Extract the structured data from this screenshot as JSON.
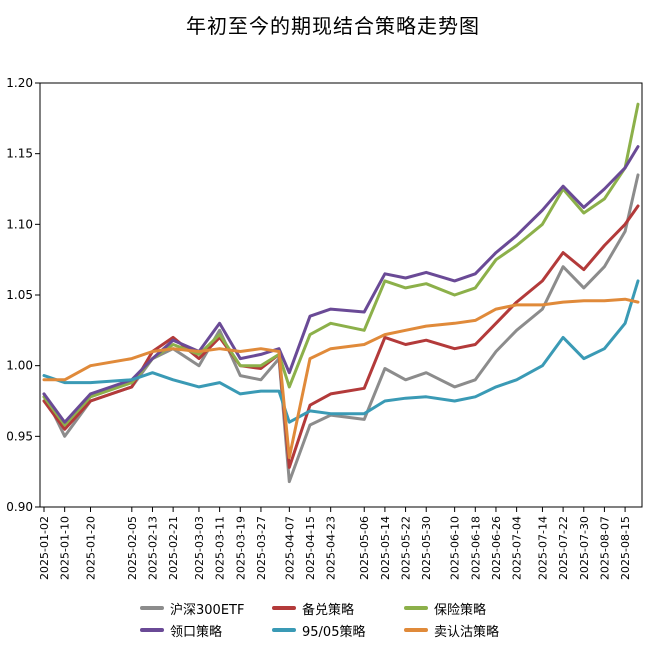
{
  "chart_data": {
    "type": "line",
    "title": "年初至今的期现结合策略走势图",
    "xlabel": "",
    "ylabel": "",
    "ylim": [
      0.9,
      1.2
    ],
    "yticks": [
      "0.90",
      "0.95",
      "1.00",
      "1.05",
      "1.10",
      "1.15",
      "1.20"
    ],
    "ytick_values": [
      0.9,
      0.95,
      1.0,
      1.05,
      1.1,
      1.15,
      1.2
    ],
    "xticks": [
      "2025-01-02",
      "2025-01-10",
      "2025-01-20",
      "2025-02-05",
      "2025-02-13",
      "2025-02-21",
      "2025-03-03",
      "2025-03-11",
      "2025-03-19",
      "2025-03-27",
      "2025-04-07",
      "2025-04-15",
      "2025-04-23",
      "2025-05-06",
      "2025-05-14",
      "2025-05-22",
      "2025-05-30",
      "2025-06-10",
      "2025-06-18",
      "2025-06-26",
      "2025-07-04",
      "2025-07-14",
      "2025-07-22",
      "2025-07-30",
      "2025-08-07",
      "2025-08-15"
    ],
    "x": [
      "2025-01-02",
      "2025-01-10",
      "2025-01-20",
      "2025-02-05",
      "2025-02-13",
      "2025-02-21",
      "2025-03-03",
      "2025-03-11",
      "2025-03-19",
      "2025-03-27",
      "2025-04-03",
      "2025-04-07",
      "2025-04-15",
      "2025-04-23",
      "2025-05-06",
      "2025-05-14",
      "2025-05-22",
      "2025-05-30",
      "2025-06-10",
      "2025-06-18",
      "2025-06-26",
      "2025-07-04",
      "2025-07-14",
      "2025-07-22",
      "2025-07-30",
      "2025-08-07",
      "2025-08-15",
      "2025-08-20"
    ],
    "grid": false,
    "legend_position": "bottom",
    "series": [
      {
        "name": "沪深300ETF",
        "color": "#8c8c8c",
        "values": [
          0.98,
          0.95,
          0.975,
          0.985,
          1.005,
          1.012,
          1.0,
          1.025,
          0.993,
          0.99,
          1.005,
          0.918,
          0.958,
          0.965,
          0.962,
          0.998,
          0.99,
          0.995,
          0.985,
          0.99,
          1.01,
          1.025,
          1.04,
          1.07,
          1.055,
          1.07,
          1.095,
          1.135
        ]
      },
      {
        "name": "备兑策略",
        "color": "#b33a3a",
        "values": [
          0.975,
          0.955,
          0.975,
          0.985,
          1.01,
          1.02,
          1.005,
          1.02,
          1.0,
          0.998,
          1.008,
          0.928,
          0.972,
          0.98,
          0.984,
          1.02,
          1.015,
          1.018,
          1.012,
          1.015,
          1.03,
          1.045,
          1.06,
          1.08,
          1.068,
          1.085,
          1.1,
          1.113
        ]
      },
      {
        "name": "保险策略",
        "color": "#8cb04a",
        "values": [
          0.978,
          0.958,
          0.978,
          0.988,
          1.005,
          1.015,
          1.008,
          1.022,
          1.0,
          1.0,
          1.008,
          0.985,
          1.022,
          1.03,
          1.025,
          1.06,
          1.055,
          1.058,
          1.05,
          1.055,
          1.075,
          1.085,
          1.1,
          1.125,
          1.108,
          1.118,
          1.14,
          1.185
        ]
      },
      {
        "name": "领口策略",
        "color": "#6a4a96",
        "values": [
          0.98,
          0.96,
          0.98,
          0.99,
          1.005,
          1.018,
          1.01,
          1.03,
          1.005,
          1.008,
          1.012,
          0.995,
          1.035,
          1.04,
          1.038,
          1.065,
          1.062,
          1.066,
          1.06,
          1.065,
          1.08,
          1.092,
          1.11,
          1.127,
          1.112,
          1.125,
          1.14,
          1.155
        ]
      },
      {
        "name": "95/05策略",
        "color": "#3a9ab5",
        "values": [
          0.993,
          0.988,
          0.988,
          0.99,
          0.995,
          0.99,
          0.985,
          0.988,
          0.98,
          0.982,
          0.982,
          0.96,
          0.968,
          0.966,
          0.966,
          0.975,
          0.977,
          0.978,
          0.975,
          0.978,
          0.985,
          0.99,
          1.0,
          1.02,
          1.005,
          1.012,
          1.03,
          1.06
        ]
      },
      {
        "name": "卖认沽策略",
        "color": "#e08a3a",
        "values": [
          0.99,
          0.99,
          1.0,
          1.005,
          1.01,
          1.012,
          1.01,
          1.012,
          1.01,
          1.012,
          1.01,
          0.935,
          1.005,
          1.012,
          1.015,
          1.022,
          1.025,
          1.028,
          1.03,
          1.032,
          1.04,
          1.043,
          1.043,
          1.045,
          1.046,
          1.046,
          1.047,
          1.045
        ]
      }
    ]
  }
}
